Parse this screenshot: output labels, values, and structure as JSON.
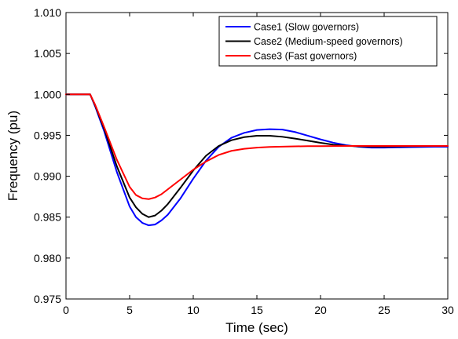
{
  "chart_data": {
    "type": "line",
    "xlabel": "Time (sec)",
    "ylabel": "Frequency (pu)",
    "xlim": [
      0,
      30
    ],
    "ylim": [
      0.975,
      1.01
    ],
    "xticks": [
      0,
      5,
      10,
      15,
      20,
      25,
      30
    ],
    "yticks": [
      0.975,
      0.98,
      0.985,
      0.99,
      0.995,
      1.0,
      1.005,
      1.01
    ],
    "xtick_labels": [
      "0",
      "5",
      "10",
      "15",
      "20",
      "25",
      "30"
    ],
    "ytick_labels": [
      "0.975",
      "0.980",
      "0.985",
      "0.990",
      "0.995",
      "1.000",
      "1.005",
      "1.010"
    ],
    "grid": false,
    "legend_position": "top-right",
    "series": [
      {
        "name": "Case1 (Slow governors)",
        "color": "#0000ff",
        "x": [
          0,
          1,
          1.9,
          2.3,
          3,
          4,
          5,
          5.5,
          6,
          6.5,
          7,
          7.5,
          8,
          9,
          10,
          11,
          12,
          13,
          14,
          15,
          16,
          17,
          18,
          19,
          20,
          21,
          22,
          23,
          24,
          25,
          26,
          27,
          28,
          29,
          30
        ],
        "y": [
          1.0,
          1.0,
          1.0,
          0.9985,
          0.9955,
          0.9905,
          0.9863,
          0.985,
          0.9843,
          0.984,
          0.9841,
          0.9846,
          0.9853,
          0.9873,
          0.9897,
          0.9919,
          0.9936,
          0.9947,
          0.9953,
          0.99565,
          0.99575,
          0.9957,
          0.9954,
          0.99495,
          0.9945,
          0.9941,
          0.9938,
          0.9936,
          0.9935,
          0.9935,
          0.99353,
          0.99355,
          0.99358,
          0.9936,
          0.9936
        ]
      },
      {
        "name": "Case2 (Medium-speed governors)",
        "color": "#000000",
        "x": [
          0,
          1,
          1.9,
          2.3,
          3,
          4,
          5,
          5.5,
          6,
          6.5,
          7,
          7.5,
          8,
          9,
          10,
          11,
          12,
          13,
          14,
          15,
          16,
          17,
          18,
          19,
          20,
          21,
          22,
          23,
          24,
          25,
          26,
          27,
          28,
          29,
          30
        ],
        "y": [
          1.0,
          1.0,
          1.0,
          0.9986,
          0.9958,
          0.9912,
          0.9874,
          0.9862,
          0.9854,
          0.985,
          0.9852,
          0.9858,
          0.9866,
          0.9886,
          0.9907,
          0.9925,
          0.9937,
          0.9944,
          0.99478,
          0.99495,
          0.99495,
          0.99482,
          0.9946,
          0.99435,
          0.99408,
          0.99385,
          0.99372,
          0.99365,
          0.99362,
          0.99362,
          0.99364,
          0.99366,
          0.99368,
          0.9937,
          0.9937
        ]
      },
      {
        "name": "Case3 (Fast governors)",
        "color": "#ff0000",
        "x": [
          0,
          1,
          1.9,
          2.3,
          3,
          4,
          5,
          5.5,
          6,
          6.5,
          7,
          7.5,
          8,
          9,
          10,
          11,
          12,
          13,
          14,
          15,
          16,
          17,
          18,
          19,
          20,
          21,
          22,
          23,
          24,
          25,
          26,
          27,
          28,
          29,
          30
        ],
        "y": [
          1.0,
          1.0,
          1.0,
          0.9987,
          0.996,
          0.992,
          0.9887,
          0.9877,
          0.9873,
          0.9872,
          0.9874,
          0.9878,
          0.9884,
          0.9896,
          0.9908,
          0.9918,
          0.9926,
          0.9931,
          0.99335,
          0.9935,
          0.99358,
          0.99362,
          0.99365,
          0.99367,
          0.99368,
          0.99369,
          0.9937,
          0.9937,
          0.9937,
          0.9937,
          0.9937,
          0.9937,
          0.9937,
          0.9937,
          0.9937
        ]
      }
    ]
  }
}
